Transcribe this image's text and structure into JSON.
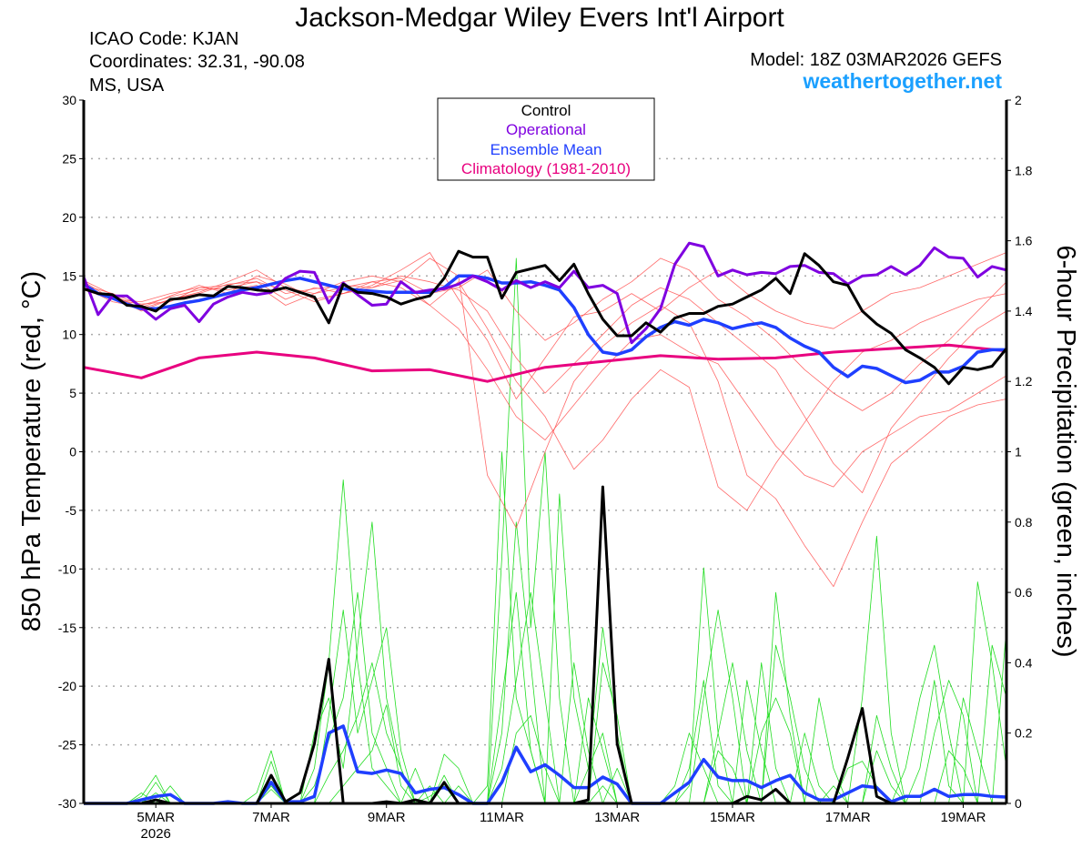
{
  "header": {
    "title": "Jackson-Medgar Wiley Evers Int'l Airport",
    "icao": "ICAO Code: KJAN",
    "coordinates": "Coordinates: 32.31, -90.08",
    "region": "MS, USA",
    "model": "Model: 18Z 03MAR2026 GEFS",
    "site": "weathertogether.net"
  },
  "colors": {
    "control": "#000000",
    "operational": "#7f00e0",
    "mean": "#1f3fff",
    "climatology": "#e8007f",
    "temp_members": "#ff5050",
    "precip_members": "#22dd22",
    "site": "#1ba0ff"
  },
  "chart_data": {
    "type": "line",
    "title": "Jackson-Medgar Wiley Evers Int'l Airport",
    "ylabel": "850 hPa Temperature (red, °C)",
    "y2label": "6-hour Precipitation (green, inches)",
    "ylim": [
      -30,
      30
    ],
    "y2lim": [
      0,
      2
    ],
    "yticks": [
      "30",
      "25",
      "20",
      "15",
      "10",
      "5",
      "0",
      "-5",
      "-10",
      "-15",
      "-20",
      "-25",
      "-30"
    ],
    "y2ticks": [
      "2",
      "1.8",
      "1.6",
      "1.4",
      "1.2",
      "1",
      "0.8",
      "0.6",
      "0.4",
      "0.2",
      "0"
    ],
    "step_hours": 6,
    "start": "18Z 03MAR2026",
    "n_steps": 65,
    "xticks": [
      {
        "step": 5,
        "label": "5MAR",
        "sub": "2026"
      },
      {
        "step": 13,
        "label": "7MAR"
      },
      {
        "step": 21,
        "label": "9MAR"
      },
      {
        "step": 29,
        "label": "11MAR"
      },
      {
        "step": 37,
        "label": "13MAR"
      },
      {
        "step": 45,
        "label": "15MAR"
      },
      {
        "step": 53,
        "label": "17MAR"
      },
      {
        "step": 61,
        "label": "19MAR"
      }
    ],
    "grid": true,
    "legend": {
      "placement": "top-center",
      "entries": [
        "Control",
        "Operational",
        "Ensemble Mean",
        "Climatology (1981-2010)"
      ]
    },
    "temperature": {
      "control": [
        13.9,
        13.5,
        13.4,
        12.5,
        12.4,
        12.0,
        13.0,
        13.1,
        13.4,
        13.3,
        14.1,
        14.0,
        13.8,
        13.7,
        14.0,
        13.6,
        13.2,
        11.0,
        14.3,
        13.6,
        13.5,
        13.2,
        12.6,
        13.0,
        13.3,
        14.8,
        17.1,
        16.6,
        16.6,
        13.1,
        15.3,
        15.6,
        15.9,
        14.6,
        16.0,
        13.5,
        11.3,
        9.9,
        9.9,
        11.0,
        10.2,
        11.4,
        11.8,
        11.8,
        12.4,
        12.6,
        13.2,
        13.8,
        14.8,
        13.5,
        16.9,
        15.9,
        14.5,
        14.2,
        12.0,
        10.9,
        10.1,
        8.7,
        8.0,
        7.2,
        5.8,
        7.2,
        7.0,
        7.3,
        8.8
      ],
      "operational": [
        14.9,
        11.7,
        13.3,
        13.3,
        12.3,
        11.3,
        12.2,
        12.5,
        11.1,
        12.6,
        13.2,
        13.6,
        13.4,
        13.6,
        14.8,
        15.4,
        15.3,
        12.7,
        14.4,
        13.4,
        12.5,
        12.6,
        14.5,
        13.6,
        13.8,
        13.9,
        14.3,
        15.0,
        14.5,
        13.8,
        14.6,
        14.0,
        14.5,
        14.0,
        15.4,
        14.0,
        14.2,
        13.5,
        9.3,
        10.5,
        12.2,
        16.0,
        17.8,
        17.5,
        15.0,
        15.5,
        15.1,
        15.3,
        15.2,
        15.8,
        15.9,
        15.3,
        15.2,
        14.3,
        15.0,
        15.1,
        15.8,
        15.1,
        15.9,
        17.4,
        16.6,
        16.5,
        14.9,
        15.8,
        15.5
      ],
      "mean": [
        14.3,
        13.5,
        13.1,
        12.6,
        12.2,
        12.2,
        12.4,
        12.7,
        12.9,
        13.2,
        13.5,
        13.8,
        14.0,
        14.3,
        14.6,
        14.8,
        14.5,
        14.2,
        13.9,
        13.8,
        13.7,
        13.6,
        13.6,
        13.6,
        13.6,
        14.0,
        15.0,
        15.0,
        14.8,
        14.4,
        14.4,
        14.5,
        14.2,
        13.8,
        12.3,
        10.0,
        8.5,
        8.3,
        8.7,
        9.8,
        10.6,
        11.1,
        10.8,
        11.3,
        11.0,
        10.5,
        10.8,
        11.0,
        10.6,
        9.7,
        9.0,
        8.5,
        7.2,
        6.4,
        7.3,
        7.1,
        6.5,
        5.9,
        6.1,
        6.8,
        6.8,
        7.3,
        8.5,
        8.7,
        8.7
      ],
      "climatology": {
        "steps": [
          0,
          4,
          8,
          12,
          16,
          20,
          24,
          28,
          32,
          36,
          40,
          44,
          48,
          52,
          56,
          60,
          64
        ],
        "values": [
          7.2,
          6.3,
          8.0,
          8.5,
          8.0,
          6.9,
          7.0,
          6.0,
          7.2,
          7.7,
          8.2,
          7.9,
          8.0,
          8.5,
          8.8,
          9.1,
          8.6
        ]
      },
      "members_12h": [
        [
          14.5,
          13.0,
          12.8,
          13.5,
          14.0,
          14.2,
          14.8,
          13.5,
          13.9,
          14.2,
          14.0,
          15.0,
          14.5,
          13.8,
          12.0,
          8.0,
          5.0,
          7.5,
          10.0,
          12.5,
          14.0,
          13.0,
          11.0,
          9.0,
          7.0,
          3.0,
          -1.0,
          -3.5,
          2.0,
          5.0,
          8.0,
          10.5,
          12.0
        ],
        [
          14.0,
          13.2,
          12.0,
          13.0,
          13.6,
          14.5,
          15.5,
          14.0,
          13.5,
          14.5,
          15.0,
          14.5,
          16.5,
          15.0,
          -2.0,
          -6.5,
          0.0,
          6.0,
          9.0,
          11.0,
          12.5,
          11.0,
          6.0,
          -2.0,
          -4.0,
          -8.0,
          -11.5,
          -6.0,
          -1.0,
          1.0,
          3.0,
          4.0,
          4.5
        ],
        [
          14.2,
          13.5,
          12.5,
          13.2,
          13.8,
          14.0,
          14.5,
          13.0,
          14.0,
          13.5,
          14.2,
          15.5,
          17.0,
          13.0,
          9.5,
          4.5,
          8.0,
          11.5,
          12.0,
          13.5,
          12.0,
          14.0,
          15.5,
          13.5,
          12.0,
          11.0,
          10.5,
          12.0,
          13.5,
          14.0,
          15.0,
          16.0,
          17.0
        ],
        [
          13.8,
          13.0,
          12.6,
          12.8,
          14.0,
          13.8,
          14.2,
          12.5,
          13.5,
          14.0,
          14.5,
          14.0,
          12.5,
          14.5,
          10.5,
          6.0,
          3.0,
          -1.5,
          1.0,
          4.5,
          7.0,
          5.5,
          -3.0,
          -5.0,
          -1.0,
          2.5,
          6.0,
          8.5,
          9.5,
          11.0,
          12.0,
          13.0,
          13.5
        ],
        [
          14.6,
          13.4,
          12.2,
          13.0,
          13.5,
          14.3,
          14.5,
          13.8,
          12.8,
          13.5,
          14.5,
          14.8,
          13.5,
          14.0,
          15.5,
          12.0,
          9.5,
          11.0,
          13.0,
          14.5,
          16.5,
          15.5,
          13.0,
          11.5,
          9.5,
          7.0,
          5.0,
          3.5,
          5.0,
          7.5,
          9.5,
          12.0,
          14.5
        ],
        [
          14.0,
          12.8,
          12.3,
          13.3,
          14.2,
          13.5,
          15.0,
          14.3,
          13.0,
          13.5,
          14.0,
          14.6,
          12.5,
          10.5,
          7.0,
          3.0,
          1.0,
          4.0,
          7.0,
          9.5,
          10.0,
          8.5,
          7.5,
          4.0,
          0.5,
          -2.0,
          -3.0,
          0.0,
          1.5,
          3.0,
          3.5,
          5.0,
          6.5
        ]
      ]
    },
    "precipitation": {
      "control": [
        0,
        0,
        0,
        0,
        0,
        0.01,
        0,
        0,
        0,
        0,
        0,
        0,
        0,
        0.08,
        0.005,
        0.03,
        0.17,
        0.41,
        0,
        0,
        0,
        0.005,
        0,
        0.01,
        0,
        0.06,
        0,
        0,
        0,
        0,
        0,
        0,
        0,
        0,
        0,
        0.01,
        0.9,
        0.17,
        0,
        0,
        0,
        0,
        0,
        0,
        0,
        0,
        0.02,
        0.01,
        0.04,
        0,
        0,
        0,
        0,
        0.13,
        0.27,
        0.02,
        0,
        0,
        0,
        0,
        0,
        0,
        0,
        0,
        0
      ],
      "mean": [
        0,
        0,
        0,
        0,
        0.01,
        0.02,
        0.025,
        0,
        0,
        0,
        0.005,
        0,
        0,
        0.06,
        0.005,
        0.005,
        0.02,
        0.2,
        0.22,
        0.09,
        0.085,
        0.095,
        0.085,
        0.03,
        0.04,
        0.045,
        0.025,
        0,
        0,
        0.06,
        0.16,
        0.09,
        0.11,
        0.08,
        0.045,
        0.045,
        0.075,
        0.055,
        0,
        0,
        0,
        0.03,
        0.06,
        0.125,
        0.075,
        0.065,
        0.065,
        0.045,
        0.065,
        0.08,
        0.03,
        0.01,
        0.01,
        0.03,
        0.05,
        0.045,
        0.005,
        0.02,
        0.02,
        0.04,
        0.02,
        0.025,
        0.025,
        0.02,
        0.018
      ],
      "members_sparse": [
        [
          [
            4,
            0.02
          ],
          [
            5,
            0.08
          ],
          [
            12,
            0.03
          ],
          [
            13,
            0.15
          ],
          [
            16,
            0.1
          ],
          [
            17,
            0.4
          ],
          [
            18,
            0.92
          ],
          [
            19,
            0.4
          ],
          [
            20,
            0.1
          ],
          [
            21,
            0.05
          ],
          [
            24,
            0.02
          ],
          [
            25,
            0.05
          ],
          [
            29,
            0.3
          ],
          [
            30,
            0.6
          ],
          [
            31,
            0.15
          ],
          [
            35,
            0.1
          ],
          [
            36,
            0.5
          ],
          [
            37,
            0.2
          ],
          [
            44,
            0.2
          ],
          [
            45,
            0.4
          ],
          [
            46,
            0.15
          ],
          [
            54,
            0.3
          ],
          [
            55,
            0.76
          ],
          [
            56,
            0.2
          ]
        ],
        [
          [
            16,
            0.2
          ],
          [
            17,
            0.3
          ],
          [
            18,
            0.1
          ],
          [
            19,
            0.45
          ],
          [
            20,
            0.8
          ],
          [
            21,
            0.3
          ],
          [
            22,
            0.1
          ],
          [
            29,
            0.7
          ],
          [
            30,
            1.55
          ],
          [
            31,
            0.5
          ],
          [
            32,
            1.0
          ],
          [
            33,
            0.3
          ],
          [
            36,
            0.05
          ],
          [
            42,
            0.05
          ],
          [
            43,
            0.67
          ],
          [
            44,
            0.2
          ],
          [
            48,
            0.45
          ],
          [
            49,
            0.3
          ],
          [
            50,
            0.1
          ],
          [
            58,
            0.1
          ],
          [
            59,
            0.35
          ],
          [
            60,
            0.05
          ],
          [
            62,
            0.63
          ],
          [
            63,
            0.4
          ],
          [
            64,
            0.1
          ]
        ],
        [
          [
            5,
            0.06
          ],
          [
            13,
            0.12
          ],
          [
            17,
            0.25
          ],
          [
            18,
            0.55
          ],
          [
            19,
            0.2
          ],
          [
            20,
            0.35
          ],
          [
            21,
            0.5
          ],
          [
            22,
            0.15
          ],
          [
            25,
            0.14
          ],
          [
            26,
            0.1
          ],
          [
            29,
            0.2
          ],
          [
            30,
            0.8
          ],
          [
            31,
            0.4
          ],
          [
            33,
            0.88
          ],
          [
            34,
            0.3
          ],
          [
            35,
            0.1
          ],
          [
            36,
            0.2
          ],
          [
            43,
            0.3
          ],
          [
            44,
            0.55
          ],
          [
            45,
            0.3
          ],
          [
            47,
            0.4
          ],
          [
            48,
            0.1
          ],
          [
            51,
            0.3
          ],
          [
            52,
            0.1
          ],
          [
            55,
            0.25
          ],
          [
            56,
            0.1
          ],
          [
            61,
            0.3
          ],
          [
            62,
            0.15
          ],
          [
            64,
            0.5
          ]
        ],
        [
          [
            13,
            0.05
          ],
          [
            16,
            0.05
          ],
          [
            17,
            0.18
          ],
          [
            18,
            0.3
          ],
          [
            19,
            0.6
          ],
          [
            20,
            0.2
          ],
          [
            21,
            0.1
          ],
          [
            23,
            0.1
          ],
          [
            28,
            0.05
          ],
          [
            29,
            1.0
          ],
          [
            30,
            0.3
          ],
          [
            31,
            0.15
          ],
          [
            34,
            0.4
          ],
          [
            35,
            0.15
          ],
          [
            37,
            0.1
          ],
          [
            41,
            0.05
          ],
          [
            42,
            0.2
          ],
          [
            43,
            0.1
          ],
          [
            46,
            0.35
          ],
          [
            47,
            0.15
          ],
          [
            50,
            0.2
          ],
          [
            51,
            0.05
          ],
          [
            57,
            0.1
          ],
          [
            58,
            0.3
          ],
          [
            59,
            0.45
          ],
          [
            60,
            0.2
          ],
          [
            63,
            0.45
          ],
          [
            64,
            0.3
          ]
        ],
        [
          [
            4,
            0.03
          ],
          [
            6,
            0.05
          ],
          [
            13,
            0.04
          ],
          [
            17,
            0.08
          ],
          [
            18,
            0.15
          ],
          [
            19,
            0.25
          ],
          [
            20,
            0.4
          ],
          [
            21,
            0.2
          ],
          [
            22,
            0.1
          ],
          [
            25,
            0.08
          ],
          [
            29,
            0.1
          ],
          [
            30,
            0.35
          ],
          [
            31,
            0.6
          ],
          [
            32,
            0.3
          ],
          [
            36,
            0.4
          ],
          [
            37,
            0.25
          ],
          [
            44,
            0.15
          ],
          [
            45,
            0.1
          ],
          [
            48,
            0.6
          ],
          [
            49,
            0.25
          ],
          [
            53,
            0.1
          ],
          [
            54,
            0.12
          ],
          [
            55,
            0.05
          ],
          [
            60,
            0.15
          ],
          [
            61,
            0.1
          ]
        ],
        [
          [
            5,
            0.03
          ],
          [
            13,
            0.06
          ],
          [
            18,
            0.05
          ],
          [
            19,
            0.1
          ],
          [
            20,
            0.15
          ],
          [
            21,
            0.28
          ],
          [
            22,
            0.05
          ],
          [
            24,
            0.05
          ],
          [
            26,
            0.05
          ],
          [
            30,
            0.2
          ],
          [
            31,
            0.25
          ],
          [
            32,
            0.1
          ],
          [
            35,
            0.3
          ],
          [
            36,
            0.15
          ],
          [
            42,
            0.1
          ],
          [
            43,
            0.35
          ],
          [
            44,
            0.05
          ],
          [
            47,
            0.2
          ],
          [
            48,
            0.3
          ],
          [
            49,
            0.2
          ],
          [
            52,
            0.05
          ],
          [
            55,
            0.15
          ],
          [
            56,
            0.05
          ],
          [
            59,
            0.2
          ],
          [
            60,
            0.35
          ],
          [
            61,
            0.25
          ]
        ]
      ]
    }
  }
}
